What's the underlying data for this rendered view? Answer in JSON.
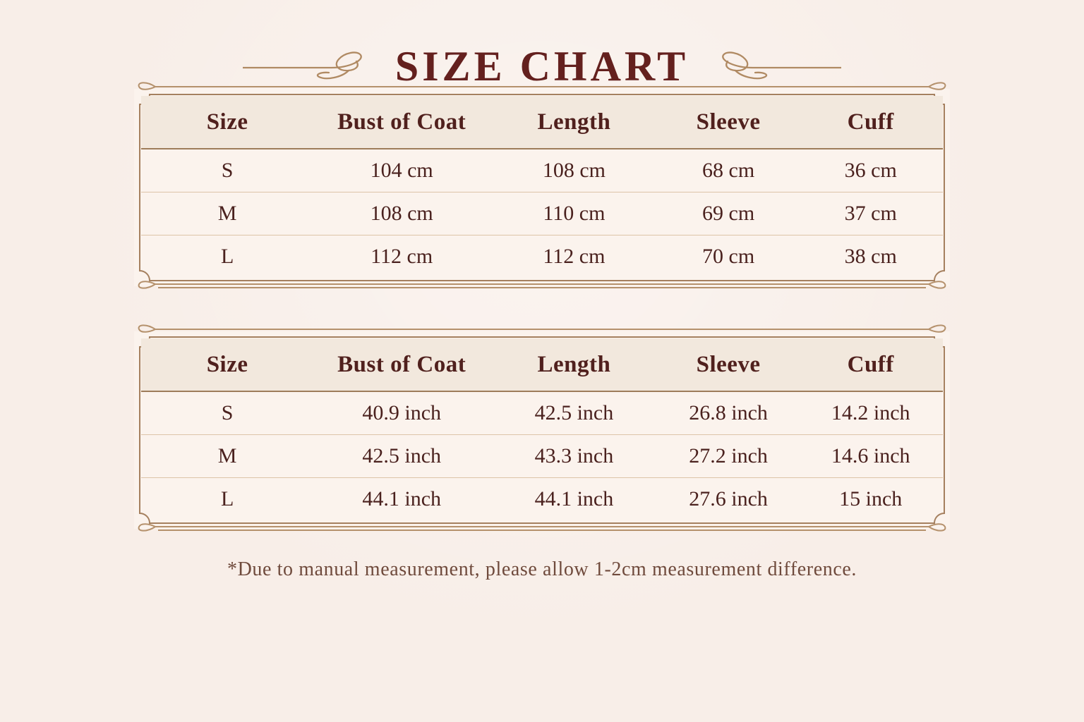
{
  "page": {
    "title": "SIZE CHART",
    "footnote": "*Due to manual measurement, please allow 1-2cm measurement difference."
  },
  "chart_data": [
    {
      "type": "table",
      "unit": "cm",
      "columns": [
        "Size",
        "Bust of Coat",
        "Length",
        "Sleeve",
        "Cuff"
      ],
      "rows": [
        [
          "S",
          "104 cm",
          "108 cm",
          "68 cm",
          "36 cm"
        ],
        [
          "M",
          "108 cm",
          "110 cm",
          "69 cm",
          "37 cm"
        ],
        [
          "L",
          "112 cm",
          "112 cm",
          "70 cm",
          "38 cm"
        ]
      ]
    },
    {
      "type": "table",
      "unit": "inch",
      "columns": [
        "Size",
        "Bust of Coat",
        "Length",
        "Sleeve",
        "Cuff"
      ],
      "rows": [
        [
          "S",
          "40.9 inch",
          "42.5 inch",
          "26.8 inch",
          "14.2 inch"
        ],
        [
          "M",
          "42.5 inch",
          "43.3 inch",
          "27.2 inch",
          "14.6 inch"
        ],
        [
          "L",
          "44.1 inch",
          "44.1 inch",
          "27.6 inch",
          "15 inch"
        ]
      ]
    }
  ],
  "colors": {
    "background": "#f8eee8",
    "table_background": "#fbf3ed",
    "header_background": "#f2e8dd",
    "border": "#a5805f",
    "flourish": "#b08a63",
    "row_divider": "#dcc3a8",
    "title_text": "#64201e",
    "table_text": "#4a211e",
    "footnote_text": "#6f4a3c"
  }
}
